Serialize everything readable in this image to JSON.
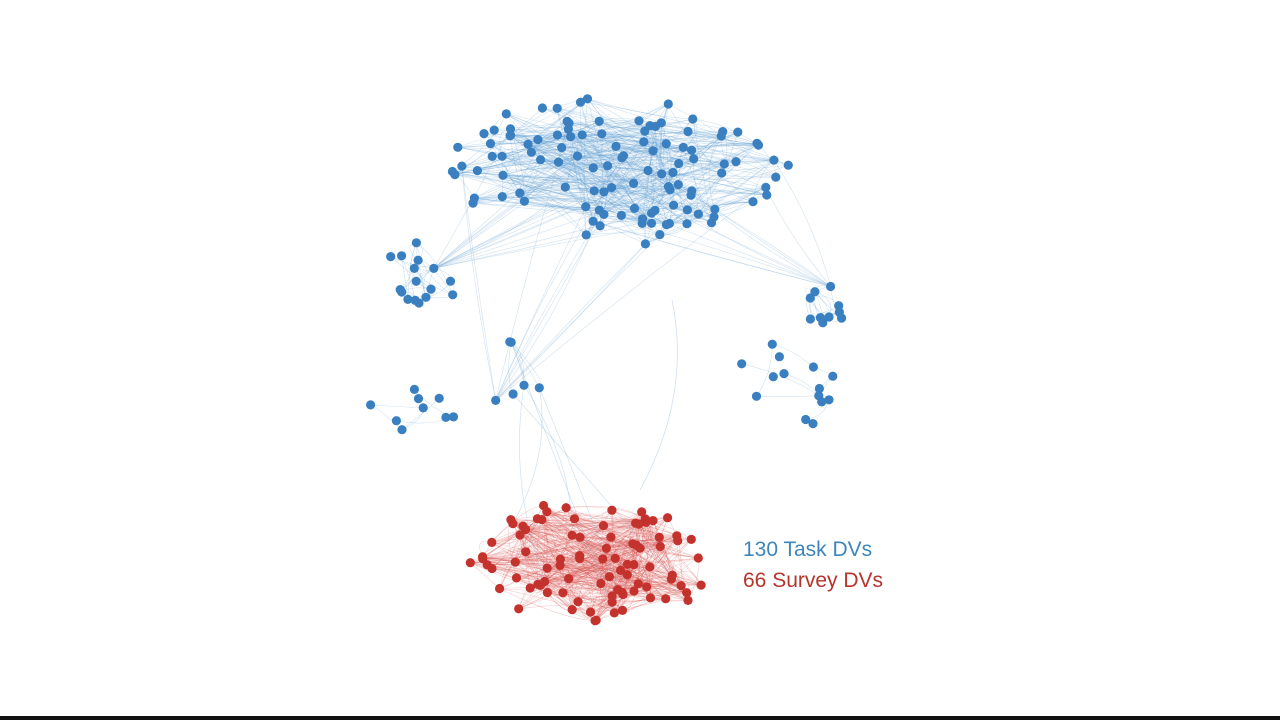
{
  "legend": {
    "task": "130 Task DVs",
    "survey": "66 Survey DVs"
  }
}
